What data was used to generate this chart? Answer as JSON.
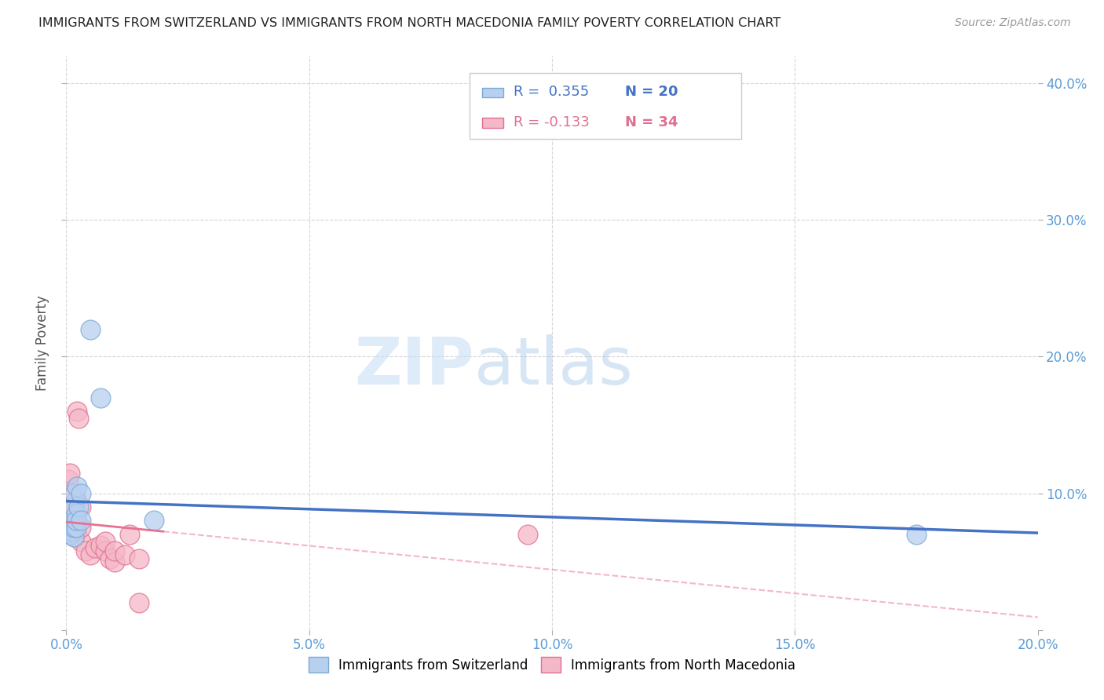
{
  "title": "IMMIGRANTS FROM SWITZERLAND VS IMMIGRANTS FROM NORTH MACEDONIA FAMILY POVERTY CORRELATION CHART",
  "source": "Source: ZipAtlas.com",
  "ylabel": "Family Poverty",
  "xlim": [
    0.0,
    0.2
  ],
  "ylim": [
    0.0,
    0.42
  ],
  "x_ticks": [
    0.0,
    0.05,
    0.1,
    0.15,
    0.2
  ],
  "y_ticks": [
    0.0,
    0.1,
    0.2,
    0.3,
    0.4
  ],
  "x_tick_labels": [
    "0.0%",
    "5.0%",
    "10.0%",
    "15.0%",
    "20.0%"
  ],
  "y_tick_labels": [
    "",
    "10.0%",
    "20.0%",
    "30.0%",
    "40.0%"
  ],
  "swiss_color": "#b8d0f0",
  "swiss_edge_color": "#7aaad4",
  "mac_color": "#f5b8c8",
  "mac_edge_color": "#e07090",
  "swiss_line_color": "#4472c4",
  "mac_line_color": "#e87090",
  "watermark_zip": "ZIP",
  "watermark_atlas": "atlas",
  "legend_R_swiss": "R =  0.355",
  "legend_N_swiss": "N = 20",
  "legend_R_mac": "R = -0.133",
  "legend_N_mac": "N = 34",
  "swiss_x": [
    0.0008,
    0.001,
    0.001,
    0.0012,
    0.0012,
    0.0015,
    0.0015,
    0.0015,
    0.0018,
    0.002,
    0.002,
    0.002,
    0.0022,
    0.0025,
    0.003,
    0.003,
    0.005,
    0.007,
    0.018,
    0.175
  ],
  "swiss_y": [
    0.07,
    0.073,
    0.075,
    0.072,
    0.08,
    0.068,
    0.075,
    0.09,
    0.1,
    0.075,
    0.085,
    0.08,
    0.105,
    0.09,
    0.1,
    0.08,
    0.22,
    0.17,
    0.08,
    0.07
  ],
  "mac_x": [
    0.0005,
    0.0008,
    0.001,
    0.001,
    0.001,
    0.0012,
    0.0012,
    0.0015,
    0.0015,
    0.0015,
    0.0018,
    0.002,
    0.002,
    0.002,
    0.002,
    0.0022,
    0.0025,
    0.003,
    0.003,
    0.003,
    0.004,
    0.005,
    0.006,
    0.007,
    0.008,
    0.008,
    0.009,
    0.01,
    0.01,
    0.012,
    0.013,
    0.015,
    0.015,
    0.095
  ],
  "mac_y": [
    0.11,
    0.115,
    0.085,
    0.09,
    0.1,
    0.07,
    0.08,
    0.073,
    0.075,
    0.082,
    0.068,
    0.072,
    0.075,
    0.08,
    0.095,
    0.16,
    0.155,
    0.065,
    0.075,
    0.09,
    0.058,
    0.055,
    0.06,
    0.062,
    0.058,
    0.065,
    0.052,
    0.05,
    0.058,
    0.055,
    0.07,
    0.02,
    0.052,
    0.07
  ],
  "background_color": "#ffffff",
  "grid_color": "#cccccc"
}
